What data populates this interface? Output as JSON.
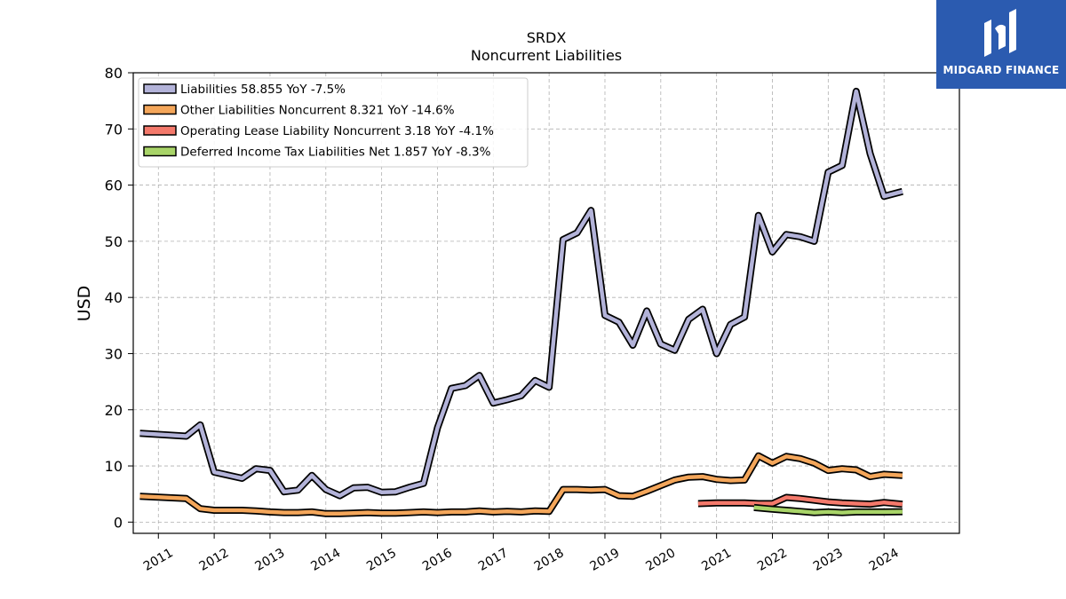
{
  "brand": {
    "name": "MIDGARD FINANCE",
    "logo_icon": "midgard-logo-icon",
    "color": "#2b5bb0"
  },
  "chart_data": {
    "type": "line",
    "title": "SRDX",
    "subtitle": "Noncurrent  Liabilities",
    "xlabel": "",
    "ylabel": "USD",
    "xlim": [
      2010.55,
      2025.35
    ],
    "ylim": [
      -2,
      80
    ],
    "x_ticks": [
      2011,
      2012,
      2013,
      2014,
      2015,
      2016,
      2017,
      2018,
      2019,
      2020,
      2021,
      2022,
      2023,
      2024
    ],
    "y_ticks": [
      0,
      10,
      20,
      30,
      40,
      50,
      60,
      70,
      80
    ],
    "grid": true,
    "legend_position": "top-left",
    "series": [
      {
        "name": "Liabilities",
        "legend": "Liabilities  58.855 YoY -7.5%",
        "color": "#b3b3d9",
        "x": [
          2010.67,
          2011.5,
          2011.75,
          2012.0,
          2012.5,
          2012.75,
          2013.0,
          2013.25,
          2013.5,
          2013.75,
          2014.0,
          2014.25,
          2014.5,
          2014.75,
          2015.0,
          2015.25,
          2015.5,
          2015.75,
          2016.0,
          2016.25,
          2016.5,
          2016.75,
          2017.0,
          2017.25,
          2017.5,
          2017.75,
          2018.0,
          2018.25,
          2018.5,
          2018.75,
          2019.0,
          2019.25,
          2019.5,
          2019.75,
          2020.0,
          2020.25,
          2020.5,
          2020.75,
          2021.0,
          2021.25,
          2021.5,
          2021.75,
          2022.0,
          2022.25,
          2022.5,
          2022.75,
          2023.0,
          2023.25,
          2023.5,
          2023.75,
          2024.0,
          2024.33
        ],
        "y": [
          15.8,
          15.3,
          17.3,
          8.9,
          7.8,
          9.5,
          9.2,
          5.4,
          5.7,
          8.3,
          5.8,
          4.7,
          6.1,
          6.2,
          5.3,
          5.4,
          6.2,
          6.9,
          16.8,
          23.8,
          24.3,
          26.1,
          21.2,
          21.8,
          22.5,
          25.2,
          24.0,
          50.3,
          51.5,
          55.5,
          36.8,
          35.6,
          31.5,
          37.6,
          31.7,
          30.6,
          36.1,
          37.9,
          30.0,
          35.2,
          36.5,
          54.6,
          48.1,
          51.2,
          50.8,
          50.0,
          62.3,
          63.5,
          76.7,
          65.6,
          58.0,
          58.855
        ]
      },
      {
        "name": "Other Liabilities Noncurrent",
        "legend": "Other Liabilities Noncurrent  8.321 YoY -14.6%",
        "color": "#f4a65a",
        "x": [
          2010.67,
          2011.5,
          2011.75,
          2012.0,
          2012.5,
          2012.75,
          2013.0,
          2013.25,
          2013.5,
          2013.75,
          2014.0,
          2014.25,
          2014.5,
          2014.75,
          2015.0,
          2015.25,
          2015.5,
          2015.75,
          2016.0,
          2016.25,
          2016.5,
          2016.75,
          2017.0,
          2017.25,
          2017.5,
          2017.75,
          2018.0,
          2018.25,
          2018.5,
          2018.75,
          2019.0,
          2019.25,
          2019.5,
          2019.75,
          2020.0,
          2020.25,
          2020.5,
          2020.75,
          2021.0,
          2021.25,
          2021.5,
          2021.75,
          2022.0,
          2022.25,
          2022.5,
          2022.75,
          2023.0,
          2023.25,
          2023.5,
          2023.75,
          2024.0,
          2024.33
        ],
        "y": [
          4.6,
          4.2,
          2.4,
          2.1,
          2.1,
          2.0,
          1.8,
          1.7,
          1.7,
          1.8,
          1.5,
          1.5,
          1.6,
          1.7,
          1.6,
          1.6,
          1.7,
          1.8,
          1.7,
          1.8,
          1.8,
          2.0,
          1.8,
          1.9,
          1.8,
          2.0,
          1.9,
          5.8,
          5.8,
          5.7,
          5.8,
          4.7,
          4.6,
          5.5,
          6.5,
          7.5,
          8.0,
          8.1,
          7.6,
          7.4,
          7.5,
          11.8,
          10.5,
          11.7,
          11.3,
          10.5,
          9.2,
          9.5,
          9.3,
          8.1,
          8.5,
          8.321
        ]
      },
      {
        "name": "Operating Lease Liability Noncurrent",
        "legend": "Operating Lease Liability Noncurrent  3.18 YoY -4.1%",
        "color": "#f4796b",
        "x": [
          2020.67,
          2021.0,
          2021.25,
          2021.5,
          2021.75,
          2022.0,
          2022.25,
          2022.5,
          2022.75,
          2023.0,
          2023.25,
          2023.5,
          2023.75,
          2024.0,
          2024.33
        ],
        "y": [
          3.3,
          3.4,
          3.4,
          3.4,
          3.3,
          3.3,
          4.4,
          4.2,
          3.9,
          3.6,
          3.4,
          3.3,
          3.2,
          3.5,
          3.18
        ]
      },
      {
        "name": "Deferred Income Tax Liabilities Net",
        "legend": "Deferred Income Tax Liabilities Net  1.857 YoY -8.3%",
        "color": "#a8d468",
        "x": [
          2021.67,
          2022.0,
          2022.25,
          2022.5,
          2022.75,
          2023.0,
          2023.25,
          2023.5,
          2023.75,
          2024.0,
          2024.33
        ],
        "y": [
          2.6,
          2.3,
          2.1,
          1.9,
          1.7,
          1.8,
          1.7,
          1.8,
          1.8,
          1.8,
          1.857
        ]
      }
    ]
  }
}
